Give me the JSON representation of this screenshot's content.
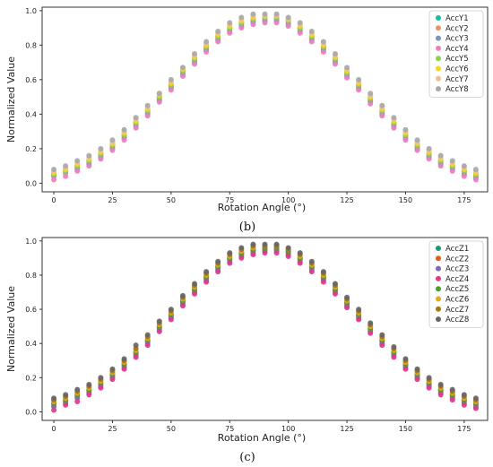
{
  "chart_data": [
    {
      "type": "scatter",
      "caption": "(b)",
      "xlabel": "Rotation Angle (°)",
      "ylabel": "Normalized Value",
      "xlim": [
        -5,
        185
      ],
      "ylim": [
        -0.05,
        1.02
      ],
      "x_ticks": [
        "0",
        "25",
        "50",
        "75",
        "100",
        "125",
        "150",
        "175"
      ],
      "y_ticks": [
        "0.0",
        "0.2",
        "0.4",
        "0.6",
        "0.8",
        "1.0"
      ],
      "grid": false,
      "legend_position": "top-right",
      "x": [
        0,
        5,
        10,
        15,
        20,
        25,
        30,
        35,
        40,
        45,
        50,
        55,
        60,
        65,
        70,
        75,
        80,
        85,
        90,
        95,
        100,
        105,
        110,
        115,
        120,
        125,
        130,
        135,
        140,
        145,
        150,
        155,
        160,
        165,
        170,
        175,
        180
      ],
      "series": [
        {
          "name": "AccY1",
          "color": "#1bbc9b",
          "values": [
            0.06,
            0.08,
            0.1,
            0.13,
            0.17,
            0.22,
            0.28,
            0.35,
            0.42,
            0.5,
            0.57,
            0.65,
            0.72,
            0.79,
            0.85,
            0.9,
            0.93,
            0.95,
            0.96,
            0.96,
            0.94,
            0.9,
            0.85,
            0.79,
            0.72,
            0.64,
            0.57,
            0.49,
            0.42,
            0.35,
            0.28,
            0.22,
            0.17,
            0.13,
            0.1,
            0.07,
            0.05
          ]
        },
        {
          "name": "AccY2",
          "color": "#f0955a",
          "values": [
            0.05,
            0.07,
            0.09,
            0.12,
            0.16,
            0.21,
            0.27,
            0.34,
            0.41,
            0.49,
            0.56,
            0.64,
            0.71,
            0.78,
            0.84,
            0.89,
            0.92,
            0.94,
            0.95,
            0.95,
            0.93,
            0.89,
            0.84,
            0.78,
            0.71,
            0.63,
            0.56,
            0.48,
            0.41,
            0.34,
            0.27,
            0.21,
            0.16,
            0.12,
            0.09,
            0.06,
            0.04
          ]
        },
        {
          "name": "AccY3",
          "color": "#7d93bd",
          "values": [
            0.04,
            0.06,
            0.08,
            0.11,
            0.15,
            0.2,
            0.26,
            0.33,
            0.4,
            0.48,
            0.55,
            0.63,
            0.7,
            0.77,
            0.83,
            0.88,
            0.91,
            0.93,
            0.94,
            0.94,
            0.92,
            0.88,
            0.83,
            0.77,
            0.7,
            0.62,
            0.55,
            0.47,
            0.4,
            0.33,
            0.26,
            0.2,
            0.15,
            0.11,
            0.08,
            0.05,
            0.03
          ]
        },
        {
          "name": "AccY4",
          "color": "#ea80be",
          "values": [
            0.02,
            0.04,
            0.07,
            0.1,
            0.14,
            0.19,
            0.25,
            0.32,
            0.39,
            0.47,
            0.54,
            0.62,
            0.69,
            0.76,
            0.82,
            0.87,
            0.9,
            0.92,
            0.93,
            0.93,
            0.91,
            0.87,
            0.82,
            0.76,
            0.69,
            0.61,
            0.54,
            0.46,
            0.39,
            0.32,
            0.25,
            0.19,
            0.14,
            0.1,
            0.07,
            0.04,
            0.02
          ]
        },
        {
          "name": "AccY5",
          "color": "#8fd24a",
          "values": [
            0.05,
            0.07,
            0.1,
            0.13,
            0.17,
            0.22,
            0.28,
            0.35,
            0.42,
            0.5,
            0.57,
            0.65,
            0.72,
            0.79,
            0.85,
            0.9,
            0.93,
            0.95,
            0.96,
            0.96,
            0.94,
            0.9,
            0.85,
            0.79,
            0.72,
            0.64,
            0.57,
            0.49,
            0.42,
            0.35,
            0.28,
            0.22,
            0.17,
            0.13,
            0.1,
            0.07,
            0.05
          ]
        },
        {
          "name": "AccY6",
          "color": "#f4d528",
          "values": [
            0.06,
            0.08,
            0.11,
            0.14,
            0.18,
            0.23,
            0.29,
            0.36,
            0.43,
            0.51,
            0.58,
            0.66,
            0.73,
            0.8,
            0.86,
            0.91,
            0.94,
            0.96,
            0.97,
            0.97,
            0.95,
            0.91,
            0.86,
            0.8,
            0.73,
            0.65,
            0.58,
            0.5,
            0.43,
            0.36,
            0.29,
            0.23,
            0.18,
            0.14,
            0.11,
            0.08,
            0.06
          ]
        },
        {
          "name": "AccY7",
          "color": "#efc08e",
          "values": [
            0.07,
            0.09,
            0.12,
            0.15,
            0.19,
            0.24,
            0.3,
            0.37,
            0.44,
            0.52,
            0.59,
            0.67,
            0.74,
            0.81,
            0.87,
            0.92,
            0.95,
            0.97,
            0.97,
            0.97,
            0.95,
            0.92,
            0.87,
            0.81,
            0.74,
            0.66,
            0.59,
            0.51,
            0.44,
            0.37,
            0.3,
            0.24,
            0.19,
            0.15,
            0.12,
            0.09,
            0.07
          ]
        },
        {
          "name": "AccY8",
          "color": "#a9a9a9",
          "values": [
            0.08,
            0.1,
            0.13,
            0.16,
            0.2,
            0.25,
            0.31,
            0.38,
            0.45,
            0.52,
            0.6,
            0.67,
            0.75,
            0.82,
            0.88,
            0.93,
            0.96,
            0.98,
            0.98,
            0.98,
            0.96,
            0.93,
            0.88,
            0.82,
            0.75,
            0.67,
            0.6,
            0.52,
            0.45,
            0.38,
            0.31,
            0.25,
            0.2,
            0.16,
            0.13,
            0.1,
            0.08
          ]
        }
      ]
    },
    {
      "type": "scatter",
      "caption": "(c)",
      "xlabel": "Rotation Angle (°)",
      "ylabel": "Normalized Value",
      "xlim": [
        -5,
        185
      ],
      "ylim": [
        -0.05,
        1.02
      ],
      "x_ticks": [
        "0",
        "25",
        "50",
        "75",
        "100",
        "125",
        "150",
        "175"
      ],
      "y_ticks": [
        "0.0",
        "0.2",
        "0.4",
        "0.6",
        "0.8",
        "1.0"
      ],
      "grid": false,
      "legend_position": "top-right",
      "x": [
        0,
        5,
        10,
        15,
        20,
        25,
        30,
        35,
        40,
        45,
        50,
        55,
        60,
        65,
        70,
        75,
        80,
        85,
        90,
        95,
        100,
        105,
        110,
        115,
        120,
        125,
        130,
        135,
        140,
        145,
        150,
        155,
        160,
        165,
        170,
        175,
        180
      ],
      "series": [
        {
          "name": "AccZ1",
          "color": "#1a9a6c",
          "values": [
            0.05,
            0.07,
            0.1,
            0.13,
            0.17,
            0.22,
            0.28,
            0.35,
            0.42,
            0.5,
            0.57,
            0.65,
            0.72,
            0.79,
            0.85,
            0.9,
            0.93,
            0.95,
            0.96,
            0.96,
            0.94,
            0.9,
            0.85,
            0.79,
            0.72,
            0.64,
            0.57,
            0.49,
            0.42,
            0.35,
            0.28,
            0.22,
            0.17,
            0.13,
            0.1,
            0.07,
            0.05
          ]
        },
        {
          "name": "AccZ2",
          "color": "#d95f1a",
          "values": [
            0.04,
            0.06,
            0.09,
            0.12,
            0.16,
            0.21,
            0.27,
            0.34,
            0.41,
            0.49,
            0.56,
            0.64,
            0.71,
            0.78,
            0.84,
            0.89,
            0.92,
            0.94,
            0.95,
            0.95,
            0.93,
            0.89,
            0.84,
            0.78,
            0.71,
            0.63,
            0.56,
            0.48,
            0.41,
            0.34,
            0.27,
            0.21,
            0.16,
            0.12,
            0.09,
            0.06,
            0.04
          ]
        },
        {
          "name": "AccZ3",
          "color": "#7a6dba",
          "values": [
            0.03,
            0.05,
            0.08,
            0.11,
            0.15,
            0.2,
            0.26,
            0.33,
            0.4,
            0.48,
            0.55,
            0.63,
            0.7,
            0.77,
            0.83,
            0.88,
            0.91,
            0.93,
            0.94,
            0.94,
            0.92,
            0.88,
            0.83,
            0.77,
            0.7,
            0.62,
            0.55,
            0.47,
            0.4,
            0.33,
            0.26,
            0.2,
            0.15,
            0.11,
            0.08,
            0.05,
            0.03
          ]
        },
        {
          "name": "AccZ4",
          "color": "#e03a8c",
          "values": [
            0.01,
            0.04,
            0.06,
            0.1,
            0.14,
            0.19,
            0.25,
            0.32,
            0.39,
            0.47,
            0.54,
            0.62,
            0.69,
            0.76,
            0.82,
            0.87,
            0.9,
            0.92,
            0.93,
            0.93,
            0.91,
            0.87,
            0.82,
            0.76,
            0.69,
            0.61,
            0.54,
            0.46,
            0.39,
            0.32,
            0.25,
            0.19,
            0.14,
            0.1,
            0.07,
            0.04,
            0.02
          ]
        },
        {
          "name": "AccZ5",
          "color": "#4c9e2c",
          "values": [
            0.05,
            0.07,
            0.1,
            0.13,
            0.17,
            0.22,
            0.28,
            0.35,
            0.42,
            0.5,
            0.57,
            0.65,
            0.72,
            0.79,
            0.85,
            0.9,
            0.93,
            0.95,
            0.96,
            0.96,
            0.94,
            0.9,
            0.85,
            0.79,
            0.72,
            0.64,
            0.57,
            0.49,
            0.42,
            0.35,
            0.28,
            0.22,
            0.17,
            0.13,
            0.1,
            0.07,
            0.05
          ]
        },
        {
          "name": "AccZ6",
          "color": "#e6a91a",
          "values": [
            0.06,
            0.08,
            0.11,
            0.14,
            0.18,
            0.23,
            0.29,
            0.36,
            0.43,
            0.51,
            0.58,
            0.66,
            0.73,
            0.8,
            0.86,
            0.91,
            0.94,
            0.96,
            0.97,
            0.97,
            0.95,
            0.91,
            0.86,
            0.8,
            0.73,
            0.65,
            0.58,
            0.5,
            0.43,
            0.36,
            0.29,
            0.23,
            0.18,
            0.14,
            0.11,
            0.08,
            0.06
          ]
        },
        {
          "name": "AccZ7",
          "color": "#a6761d",
          "values": [
            0.07,
            0.09,
            0.12,
            0.15,
            0.19,
            0.24,
            0.3,
            0.37,
            0.44,
            0.52,
            0.59,
            0.67,
            0.74,
            0.81,
            0.87,
            0.92,
            0.95,
            0.97,
            0.97,
            0.97,
            0.95,
            0.92,
            0.87,
            0.81,
            0.74,
            0.66,
            0.59,
            0.51,
            0.44,
            0.37,
            0.3,
            0.24,
            0.19,
            0.15,
            0.12,
            0.09,
            0.07
          ]
        },
        {
          "name": "AccZ8",
          "color": "#666666",
          "values": [
            0.08,
            0.1,
            0.13,
            0.16,
            0.2,
            0.25,
            0.31,
            0.39,
            0.45,
            0.53,
            0.6,
            0.68,
            0.75,
            0.82,
            0.88,
            0.93,
            0.96,
            0.98,
            0.98,
            0.98,
            0.96,
            0.93,
            0.88,
            0.82,
            0.75,
            0.67,
            0.6,
            0.52,
            0.45,
            0.38,
            0.31,
            0.25,
            0.2,
            0.16,
            0.13,
            0.1,
            0.08
          ]
        }
      ]
    }
  ]
}
